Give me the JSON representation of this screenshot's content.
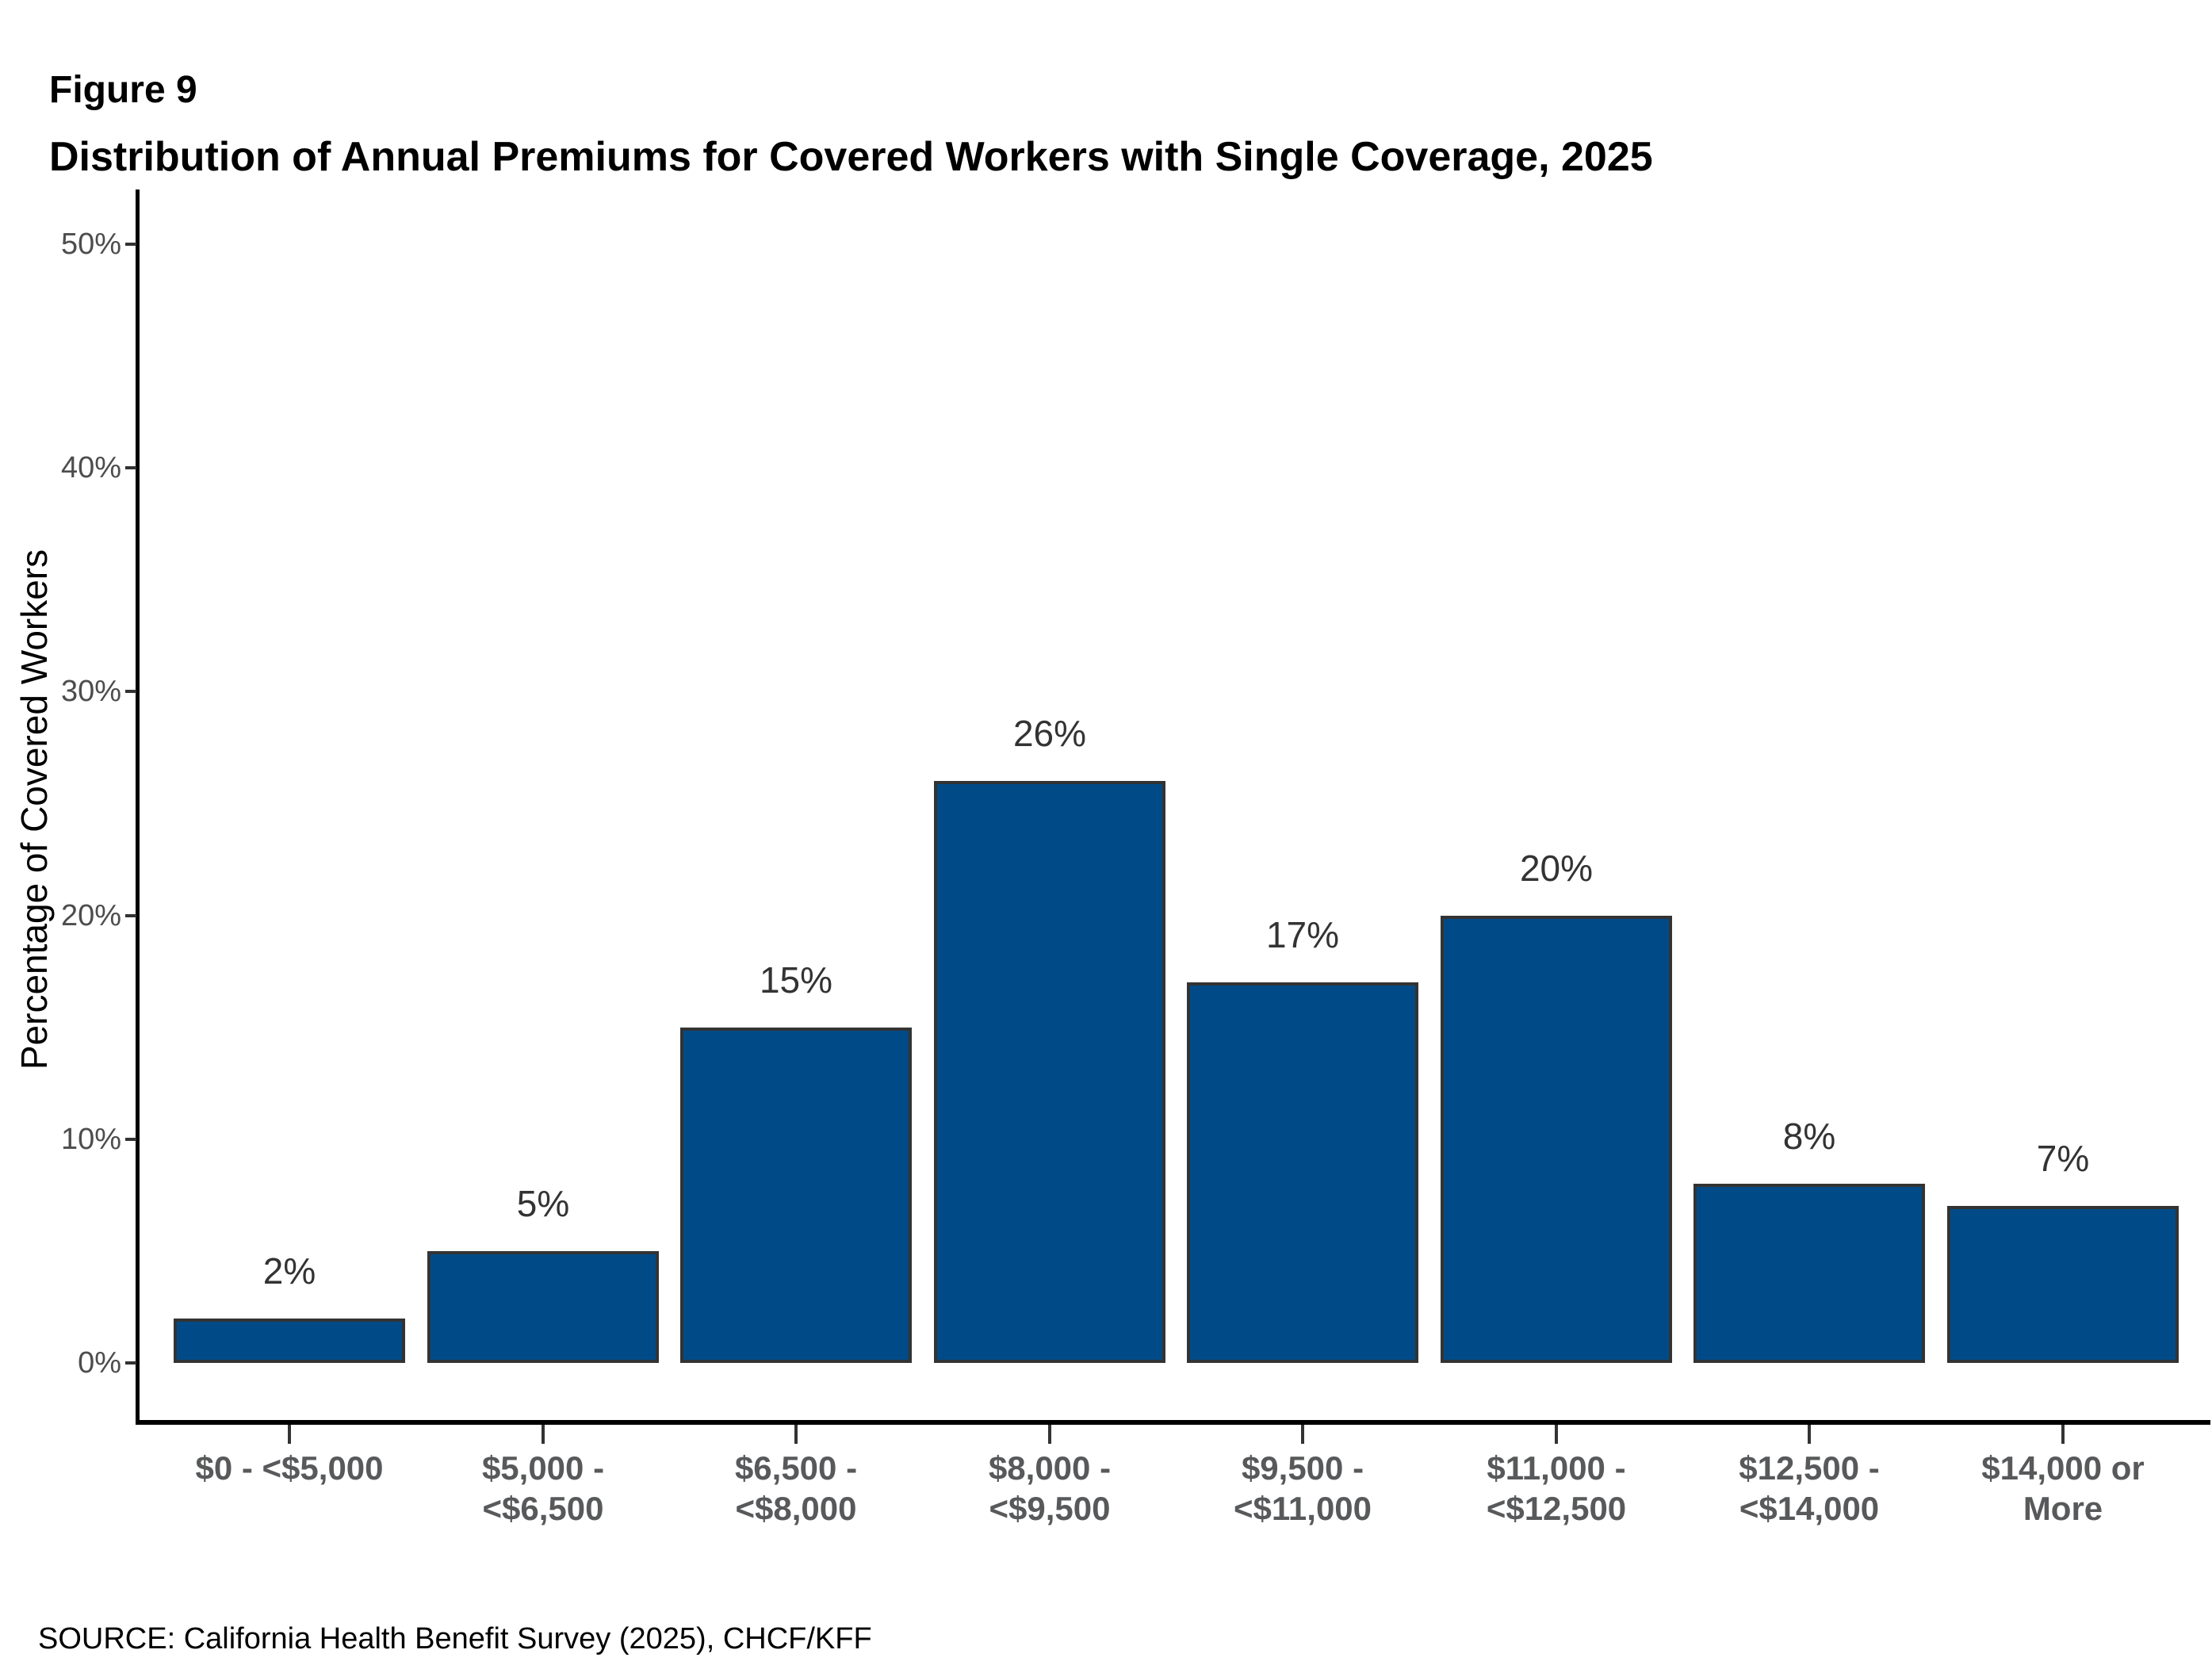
{
  "header": {
    "figure_label": "Figure 9",
    "title": "Distribution of Annual Premiums for Covered Workers with Single Coverage, 2025"
  },
  "chart_data": {
    "type": "bar",
    "title": "Distribution of Annual Premiums for Covered Workers with Single Coverage, 2025",
    "figure_label": "Figure 9",
    "xlabel": "",
    "ylabel": "Percentage of Covered Workers",
    "ylim": [
      0,
      50
    ],
    "ytick_labels": [
      "0%",
      "10%",
      "20%",
      "30%",
      "40%",
      "50%"
    ],
    "ytick_values": [
      0,
      10,
      20,
      30,
      40,
      50
    ],
    "grid": "off",
    "legend": "none",
    "categories": [
      "$0 - <$5,000",
      "$5,000 -\n<$6,500",
      "$6,500 -\n<$8,000",
      "$8,000 -\n<$9,500",
      "$9,500 -\n<$11,000",
      "$11,000 -\n<$12,500",
      "$12,500 -\n<$14,000",
      "$14,000 or\nMore"
    ],
    "values": [
      2,
      5,
      15,
      26,
      17,
      20,
      8,
      7
    ],
    "value_labels": [
      "2%",
      "5%",
      "15%",
      "26%",
      "17%",
      "20%",
      "8%",
      "7%"
    ],
    "colors": {
      "bar_fill": "#004b87",
      "bar_border": "#333333",
      "axis_line": "#000000",
      "tick_mark": "#333333",
      "ytick_label": "#4d4d4d",
      "xtick_label": "#58595b",
      "value_label": "#333333"
    }
  },
  "footer": {
    "source": "SOURCE: California Health Benefit Survey (2025), CHCF/KFF"
  }
}
